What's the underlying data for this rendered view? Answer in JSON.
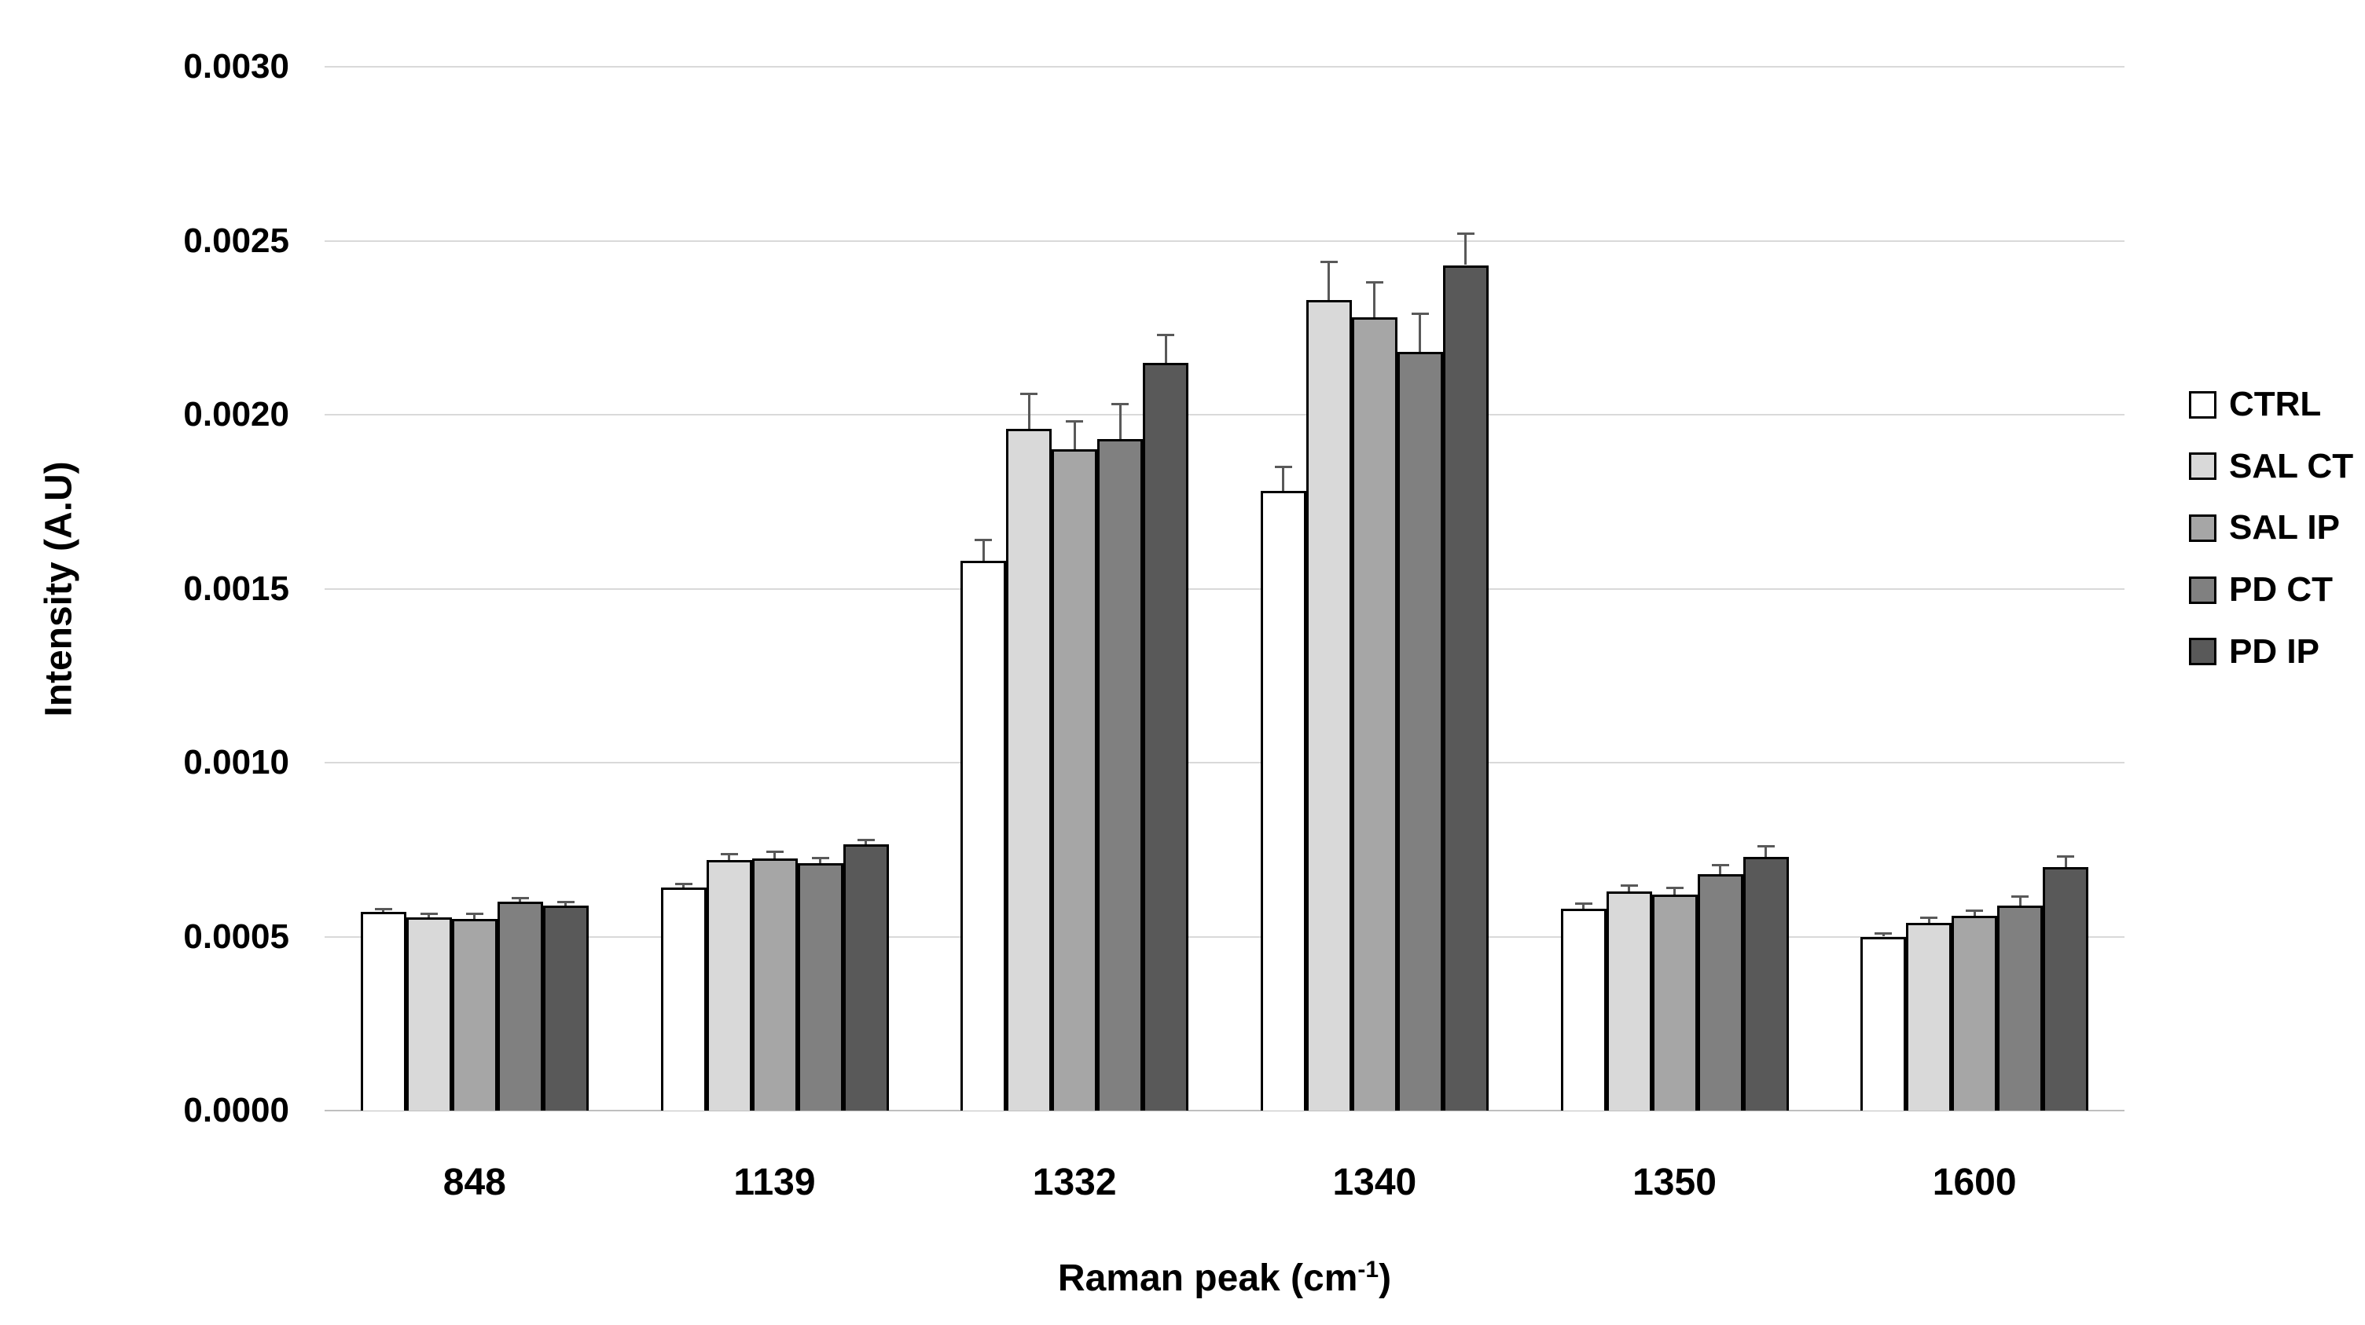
{
  "chart_data": {
    "type": "bar",
    "title": "",
    "ylabel": "Intensity (A.U)",
    "xlabel": "Raman peak (cm⁻¹)",
    "xlabel_parts": {
      "main": "Raman peak (cm",
      "sup": "-1",
      "end": ")"
    },
    "categories": [
      "848",
      "1139",
      "1332",
      "1340",
      "1350",
      "1600"
    ],
    "series": [
      {
        "name": "CTRL",
        "color": "#ffffff",
        "values": [
          0.00057,
          0.00064,
          0.00158,
          0.00178,
          0.00058,
          0.0005
        ],
        "errors": [
          1e-05,
          1.2e-05,
          6e-05,
          7e-05,
          1.5e-05,
          1e-05
        ]
      },
      {
        "name": "SAL CT",
        "color": "#d9d9d9",
        "values": [
          0.000555,
          0.00072,
          0.00196,
          0.00233,
          0.00063,
          0.00054
        ],
        "errors": [
          1e-05,
          1.8e-05,
          0.0001,
          0.00011,
          1.6e-05,
          1.5e-05
        ]
      },
      {
        "name": "SAL IP",
        "color": "#a6a6a6",
        "values": [
          0.00055,
          0.000725,
          0.0019,
          0.00228,
          0.00062,
          0.00056
        ],
        "errors": [
          1.5e-05,
          1.8e-05,
          8e-05,
          0.0001,
          2e-05,
          1.5e-05
        ]
      },
      {
        "name": "PD CT",
        "color": "#808080",
        "values": [
          0.0006,
          0.00071,
          0.00193,
          0.00218,
          0.00068,
          0.00059
        ],
        "errors": [
          1e-05,
          1.5e-05,
          0.0001,
          0.00011,
          2.5e-05,
          2.5e-05
        ]
      },
      {
        "name": "PD IP",
        "color": "#595959",
        "values": [
          0.00059,
          0.000765,
          0.00215,
          0.00243,
          0.00073,
          0.0007
        ],
        "errors": [
          1e-05,
          1.3e-05,
          8e-05,
          9e-05,
          3e-05,
          3e-05
        ]
      }
    ],
    "ylim": [
      0.0,
      0.003
    ],
    "ytick_step": 0.0005,
    "ytick_labels": [
      "0.0000",
      "0.0005",
      "0.0010",
      "0.0015",
      "0.0020",
      "0.0025",
      "0.0030"
    ],
    "grid": true,
    "legend_position": "right",
    "colors": {
      "gridline": "#d9d9d9",
      "axis_line": "#bfbfbf",
      "error_bar": "#595959",
      "bar_border": "#000000",
      "text": "#000000",
      "background": "#ffffff"
    }
  }
}
